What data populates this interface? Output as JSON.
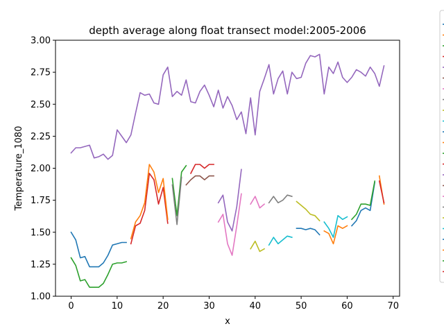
{
  "chart_data": {
    "type": "line",
    "title": "depth average along float transect model:2005-2006",
    "xlabel": "x",
    "ylabel": "Temperature_1080",
    "xlim": [
      -3.4,
      71.4
    ],
    "ylim": [
      1.0,
      3.0
    ],
    "xticks": [
      0,
      10,
      20,
      30,
      40,
      50,
      60,
      70
    ],
    "yticks": [
      1.0,
      1.25,
      1.5,
      1.75,
      2.0,
      2.25,
      2.5,
      2.75,
      3.0
    ],
    "ytick_labels": [
      "1.00",
      "1.25",
      "1.50",
      "1.75",
      "2.00",
      "2.25",
      "2.50",
      "2.75",
      "3.00"
    ],
    "grid": false,
    "legend": "right, clipped off-canvas",
    "series": [
      {
        "color": "#9467bd",
        "x": [
          0,
          1,
          2,
          3,
          4,
          5,
          6,
          7,
          8,
          9,
          10,
          11,
          12,
          13,
          14,
          15,
          16,
          17,
          18,
          19,
          20,
          21,
          22,
          23,
          24,
          25,
          26,
          27,
          28,
          29,
          30,
          31,
          32,
          33,
          34,
          35,
          36,
          37,
          38,
          39,
          40,
          41,
          42,
          43,
          44,
          45,
          46,
          47,
          48,
          49,
          50,
          51,
          52,
          53,
          54,
          55,
          56,
          57,
          58,
          59,
          60,
          61,
          62,
          63,
          64,
          65,
          66,
          67,
          68
        ],
        "y": [
          2.12,
          2.16,
          2.16,
          2.17,
          2.18,
          2.08,
          2.09,
          2.11,
          2.07,
          2.1,
          2.3,
          2.25,
          2.2,
          2.26,
          2.43,
          2.59,
          2.57,
          2.58,
          2.51,
          2.5,
          2.73,
          2.79,
          2.56,
          2.6,
          2.57,
          2.69,
          2.52,
          2.51,
          2.6,
          2.65,
          2.57,
          2.48,
          2.61,
          2.47,
          2.56,
          2.49,
          2.38,
          2.44,
          2.27,
          2.55,
          2.26,
          2.6,
          2.7,
          2.81,
          2.58,
          2.7,
          2.76,
          2.58,
          2.75,
          2.7,
          2.71,
          2.82,
          2.88,
          2.87,
          2.89,
          2.58,
          2.79,
          2.74,
          2.83,
          2.71,
          2.67,
          2.71,
          2.77,
          2.75,
          2.72,
          2.79,
          2.74,
          2.64,
          2.8
        ]
      },
      {
        "color": "#1f77b4",
        "x": [
          0,
          1,
          2,
          3,
          4,
          5,
          6,
          7,
          8,
          9,
          10,
          11,
          12
        ],
        "y": [
          1.5,
          1.44,
          1.3,
          1.31,
          1.23,
          1.23,
          1.23,
          1.26,
          1.32,
          1.4,
          1.41,
          1.42,
          1.42
        ]
      },
      {
        "color": "#2ca02c",
        "x": [
          0,
          1,
          2,
          3,
          4,
          5,
          6,
          7,
          8,
          9,
          10,
          11,
          12
        ],
        "y": [
          1.3,
          1.24,
          1.12,
          1.13,
          1.07,
          1.07,
          1.07,
          1.1,
          1.17,
          1.25,
          1.26,
          1.26,
          1.27
        ]
      },
      {
        "color": "#d62728",
        "x": [
          13,
          14,
          15,
          16,
          17,
          18,
          19,
          20,
          21
        ],
        "y": [
          1.41,
          1.55,
          1.57,
          1.67,
          1.96,
          1.91,
          1.72,
          1.85,
          1.57
        ]
      },
      {
        "color": "#ff7f0e",
        "x": [
          13,
          14,
          15,
          16,
          17,
          18,
          19,
          20,
          21
        ],
        "y": [
          1.45,
          1.58,
          1.63,
          1.73,
          2.03,
          1.97,
          1.81,
          1.92,
          1.6
        ]
      },
      {
        "color": "#2ca02c",
        "x": [
          22,
          23,
          24,
          25
        ],
        "y": [
          1.92,
          1.63,
          1.97,
          2.02
        ]
      },
      {
        "color": "#7f7f7f",
        "x": [
          22,
          23,
          24
        ],
        "y": [
          1.87,
          1.56,
          1.93
        ]
      },
      {
        "color": "#8c564b",
        "x": [
          25,
          26,
          27,
          28,
          29,
          30,
          31
        ],
        "y": [
          1.87,
          1.91,
          1.94,
          1.94,
          1.91,
          1.94,
          1.94
        ]
      },
      {
        "color": "#d62728",
        "x": [
          26,
          27,
          28,
          29,
          30,
          31
        ],
        "y": [
          1.96,
          2.03,
          2.03,
          2.0,
          2.03,
          2.03
        ]
      },
      {
        "color": "#9467bd",
        "x": [
          32,
          33,
          34,
          35,
          36,
          37
        ],
        "y": [
          1.73,
          1.79,
          1.58,
          1.51,
          1.7,
          1.99
        ]
      },
      {
        "color": "#e377c2",
        "x": [
          32,
          33,
          34,
          35,
          36,
          37
        ],
        "y": [
          1.58,
          1.64,
          1.41,
          1.32,
          1.55,
          1.8
        ]
      },
      {
        "color": "#e377c2",
        "x": [
          39,
          40,
          41,
          42
        ],
        "y": [
          1.72,
          1.78,
          1.69,
          1.72
        ]
      },
      {
        "color": "#bcbd22",
        "x": [
          39,
          40,
          41,
          42
        ],
        "y": [
          1.37,
          1.43,
          1.35,
          1.37
        ]
      },
      {
        "color": "#7f7f7f",
        "x": [
          43,
          44,
          45,
          46,
          47,
          48
        ],
        "y": [
          1.73,
          1.78,
          1.73,
          1.75,
          1.79,
          1.78
        ]
      },
      {
        "color": "#17becf",
        "x": [
          43,
          44,
          45,
          46,
          47,
          48
        ],
        "y": [
          1.4,
          1.46,
          1.41,
          1.44,
          1.47,
          1.46
        ]
      },
      {
        "color": "#bcbd22",
        "x": [
          49,
          50,
          51,
          52,
          53,
          54
        ],
        "y": [
          1.74,
          1.71,
          1.68,
          1.64,
          1.63,
          1.59
        ]
      },
      {
        "color": "#1f77b4",
        "x": [
          49,
          50,
          51,
          52,
          53,
          54
        ],
        "y": [
          1.53,
          1.53,
          1.52,
          1.53,
          1.52,
          1.48
        ]
      },
      {
        "color": "#17becf",
        "x": [
          55,
          56,
          57,
          58,
          59,
          60
        ],
        "y": [
          1.58,
          1.53,
          1.46,
          1.63,
          1.6,
          1.62
        ]
      },
      {
        "color": "#ff7f0e",
        "x": [
          55,
          56,
          57,
          58,
          59,
          60
        ],
        "y": [
          1.51,
          1.49,
          1.41,
          1.55,
          1.53,
          1.55
        ]
      },
      {
        "color": "#1f77b4",
        "x": [
          61,
          62,
          63,
          64,
          65,
          66
        ],
        "y": [
          1.55,
          1.59,
          1.67,
          1.69,
          1.67,
          1.89
        ]
      },
      {
        "color": "#2ca02c",
        "x": [
          61,
          62,
          63,
          64,
          65,
          66
        ],
        "y": [
          1.6,
          1.64,
          1.72,
          1.72,
          1.71,
          1.9
        ]
      },
      {
        "color": "#ff7f0e",
        "x": [
          67,
          68
        ],
        "y": [
          1.94,
          1.72
        ]
      },
      {
        "color": "#d62728",
        "x": [
          67,
          68
        ],
        "y": [
          1.9,
          1.73
        ]
      }
    ],
    "legend_handle_colors": [
      "#1f77b4",
      "#ff7f0e",
      "#2ca02c",
      "#d62728",
      "#9467bd",
      "#8c564b",
      "#e377c2",
      "#7f7f7f",
      "#bcbd22",
      "#17becf",
      "#1f77b4",
      "#ff7f0e",
      "#2ca02c",
      "#d62728",
      "#9467bd",
      "#8c564b",
      "#e377c2",
      "#7f7f7f",
      "#bcbd22",
      "#17becf",
      "#1f77b4",
      "#ff7f0e",
      "#2ca02c",
      "#d62728"
    ]
  }
}
